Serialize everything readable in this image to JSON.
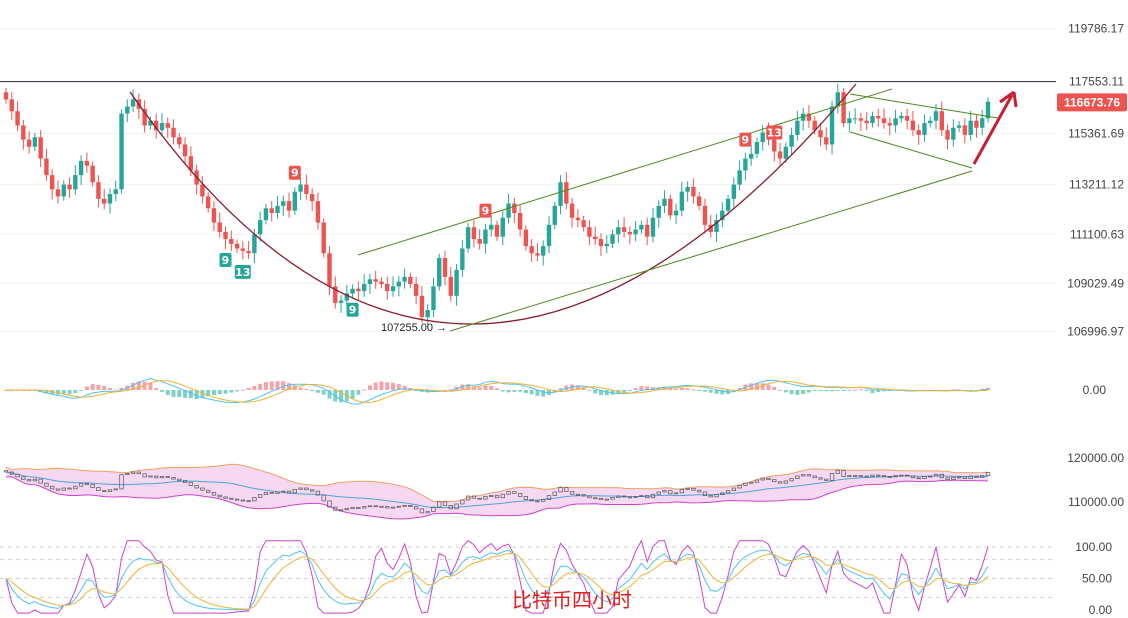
{
  "chart_data": {
    "type": "candlestick",
    "caption": "比特币四小时",
    "colors": {
      "up": "#26a69a",
      "down": "#ef5350",
      "channel": "#4a8a1c",
      "cup": "#8b1a2e",
      "arrow": "#c81e32",
      "resistance": "#1f2a44",
      "macd_line": "#4fc3f7",
      "macd_signal": "#f2b233",
      "boll_fill": "#f6d8f2",
      "boll_upper": "#f0a060",
      "boll_lower": "#cc44cc",
      "boll_mid": "#4fa3d8",
      "kdj_j": "#cc44cc",
      "kdj_k": "#4fc3f7",
      "kdj_d": "#f2b233"
    },
    "price_panel": {
      "ylim": [
        106000,
        121000
      ],
      "y_ticks": [
        "119786.17",
        "117553.11",
        "115361.69",
        "113211.12",
        "111100.63",
        "109029.49",
        "106996.97"
      ],
      "current_price": "116673.76",
      "resistance_level": 117553,
      "low_annotation": "107255.00",
      "series_close": [
        116800,
        116300,
        115700,
        115100,
        114800,
        115200,
        114300,
        113600,
        113000,
        112700,
        113200,
        113000,
        113600,
        114200,
        114000,
        113300,
        112600,
        112400,
        112800,
        113000,
        116200,
        116500,
        116800,
        116400,
        115700,
        115900,
        115500,
        115800,
        115600,
        115200,
        114900,
        114400,
        113800,
        113200,
        112700,
        112200,
        111600,
        111200,
        110900,
        110700,
        110500,
        110400,
        110300,
        111100,
        111700,
        112200,
        112000,
        112300,
        112500,
        112100,
        112900,
        113200,
        112800,
        112500,
        111600,
        110300,
        108900,
        108200,
        108300,
        108600,
        108800,
        108700,
        109000,
        109200,
        109100,
        109000,
        108700,
        108900,
        109100,
        109300,
        109000,
        108500,
        107600,
        107900,
        108900,
        110100,
        109300,
        108500,
        109600,
        110500,
        111400,
        110900,
        110700,
        111300,
        111500,
        111000,
        111800,
        112400,
        112000,
        111300,
        110600,
        110300,
        110200,
        110600,
        111500,
        112300,
        113300,
        112400,
        111800,
        111700,
        111400,
        111000,
        110900,
        110600,
        110700,
        111100,
        111400,
        111200,
        111100,
        111300,
        111500,
        111000,
        111800,
        112300,
        112600,
        111900,
        112100,
        112900,
        113100,
        112700,
        112300,
        111500,
        111200,
        111700,
        112100,
        112600,
        113200,
        113800,
        114300,
        114500,
        115000,
        115400,
        115100,
        114600,
        114300,
        114800,
        115300,
        115900,
        116200,
        115900,
        115500,
        115200,
        114900,
        116500,
        117100,
        115800,
        116000,
        116000,
        115900,
        115800,
        116100,
        116000,
        115800,
        115700,
        116000,
        116100,
        115900,
        115500,
        115300,
        115800,
        115900,
        116300,
        115500,
        115100,
        115600,
        115700,
        115300,
        115900,
        115600,
        116000,
        116700
      ]
    },
    "tom_demark_labels": [
      {
        "text": "9",
        "color": "up",
        "index": 38
      },
      {
        "text": "13",
        "color": "up",
        "index": 41
      },
      {
        "text": "9",
        "color": "down",
        "index": 50
      },
      {
        "text": "9",
        "color": "up",
        "index": 60
      },
      {
        "text": "9",
        "color": "down",
        "index": 83
      },
      {
        "text": "9",
        "color": "down",
        "index": 128
      },
      {
        "text": "13",
        "color": "down",
        "index": 133
      }
    ],
    "macd_panel": {
      "ylim": [
        -1,
        1
      ],
      "y_ticks": [
        "0.00"
      ]
    },
    "boll_panel": {
      "ylim": [
        106000,
        124000
      ],
      "y_ticks": [
        "120000.00",
        "110000.00"
      ]
    },
    "kdj_panel": {
      "ylim": [
        0,
        100
      ],
      "y_ticks": [
        "100.00",
        "50.00",
        "0.00"
      ]
    }
  }
}
